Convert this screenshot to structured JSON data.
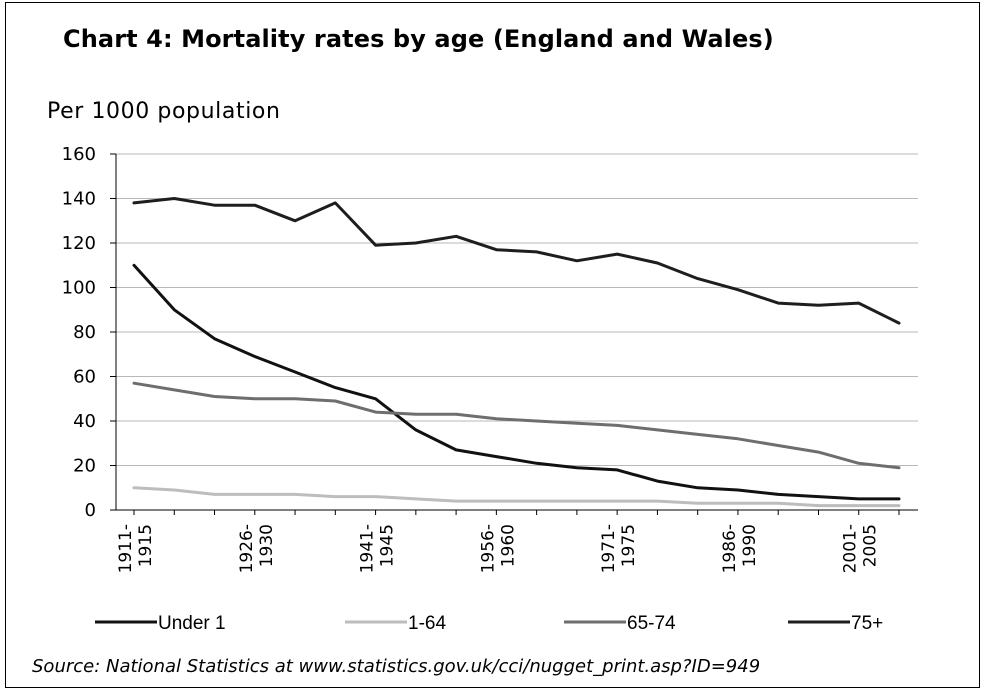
{
  "chart_data": {
    "type": "line",
    "title": "Chart 4: Mortality rates by age (England and Wales)",
    "ylabel": "Per 1000 population",
    "xlabel": "",
    "ylim": [
      0,
      160
    ],
    "yticks": [
      0,
      20,
      40,
      60,
      80,
      100,
      120,
      140,
      160
    ],
    "grid": true,
    "legend": "bottom",
    "x": [
      "1911-1915",
      "1916-1920",
      "1921-1925",
      "1926-1930",
      "1931-1935",
      "1936-1940",
      "1941-1945",
      "1946-1950",
      "1951-1955",
      "1956-1960",
      "1961-1965",
      "1966-1970",
      "1971-1975",
      "1976-1980",
      "1981-1985",
      "1986-1990",
      "1991-1995",
      "1996-2000",
      "2001-2005",
      "2006-2010"
    ],
    "xtick_labels": [
      {
        "top": "1911-",
        "bottom": "1915",
        "index": 0
      },
      {
        "top": "1926-",
        "bottom": "1930",
        "index": 3
      },
      {
        "top": "1941-",
        "bottom": "1945",
        "index": 6
      },
      {
        "top": "1956-",
        "bottom": "1960",
        "index": 9
      },
      {
        "top": "1971-",
        "bottom": "1975",
        "index": 12
      },
      {
        "top": "1986-",
        "bottom": "1990",
        "index": 15
      },
      {
        "top": "2001-",
        "bottom": "2005",
        "index": 18
      }
    ],
    "series": [
      {
        "name": "Under 1",
        "color": "#111111",
        "values": [
          110,
          90,
          77,
          69,
          62,
          55,
          50,
          36,
          27,
          24,
          21,
          19,
          18,
          13,
          10,
          9,
          7,
          6,
          5,
          5
        ]
      },
      {
        "name": "1-64",
        "color": "#bdbdbd",
        "values": [
          10,
          9,
          7,
          7,
          7,
          6,
          6,
          5,
          4,
          4,
          4,
          4,
          4,
          4,
          3,
          3,
          3,
          2,
          2,
          2
        ]
      },
      {
        "name": "65-74",
        "color": "#6e6e6e",
        "values": [
          57,
          54,
          51,
          50,
          50,
          49,
          44,
          43,
          43,
          41,
          40,
          39,
          38,
          36,
          34,
          32,
          29,
          26,
          21,
          19
        ]
      },
      {
        "name": "75+",
        "color": "#1e1e1e",
        "values": [
          138,
          140,
          137,
          137,
          130,
          138,
          119,
          120,
          123,
          117,
          116,
          112,
          115,
          111,
          104,
          99,
          93,
          92,
          93,
          84
        ]
      }
    ]
  },
  "source_text": "Source: National Statistics at www.statistics.gov.uk/cci/nugget_print.asp?ID=949"
}
